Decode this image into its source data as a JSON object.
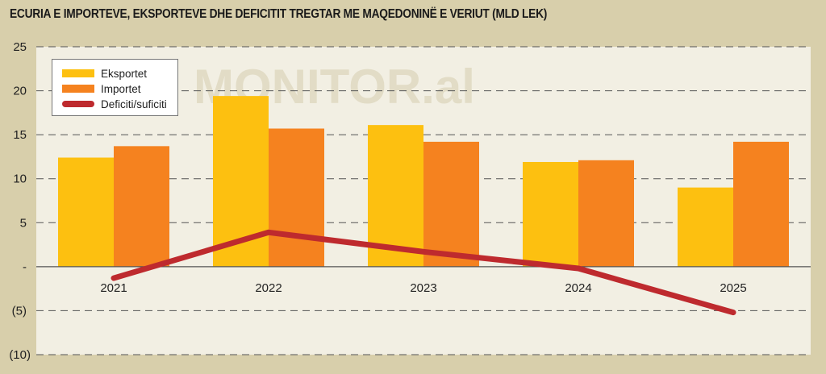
{
  "chart_data": {
    "type": "bar",
    "title": "ECURIA E IMPORTEVE, EKSPORTEVE DHE DEFICITIT TREGTAR ME MAQEDONINË E VERIUT (MLD LEK)",
    "watermark": "MONITOR.al",
    "categories": [
      "2021",
      "2022",
      "2023",
      "2024",
      "2025"
    ],
    "series": [
      {
        "name": "Eksportet",
        "type": "bar",
        "color": "#fdc010",
        "values": [
          12.4,
          19.4,
          16.1,
          11.9,
          9.0
        ]
      },
      {
        "name": "Importet",
        "type": "bar",
        "color": "#f5821f",
        "values": [
          13.7,
          15.7,
          14.2,
          12.1,
          14.2
        ]
      },
      {
        "name": "Deficiti/suficiti",
        "type": "line",
        "color": "#be2a2e",
        "values": [
          -1.3,
          3.9,
          1.7,
          -0.2,
          -5.2
        ]
      }
    ],
    "yticks": [
      25,
      20,
      15,
      10,
      5,
      0,
      -5,
      -10
    ],
    "ytick_labels": [
      "25",
      "20",
      "15",
      "10",
      "5",
      "-",
      "(5)",
      "(10)"
    ],
    "ylim": [
      -10,
      25
    ],
    "grid": true,
    "legend": "top-left",
    "xlabel": "",
    "ylabel": ""
  }
}
